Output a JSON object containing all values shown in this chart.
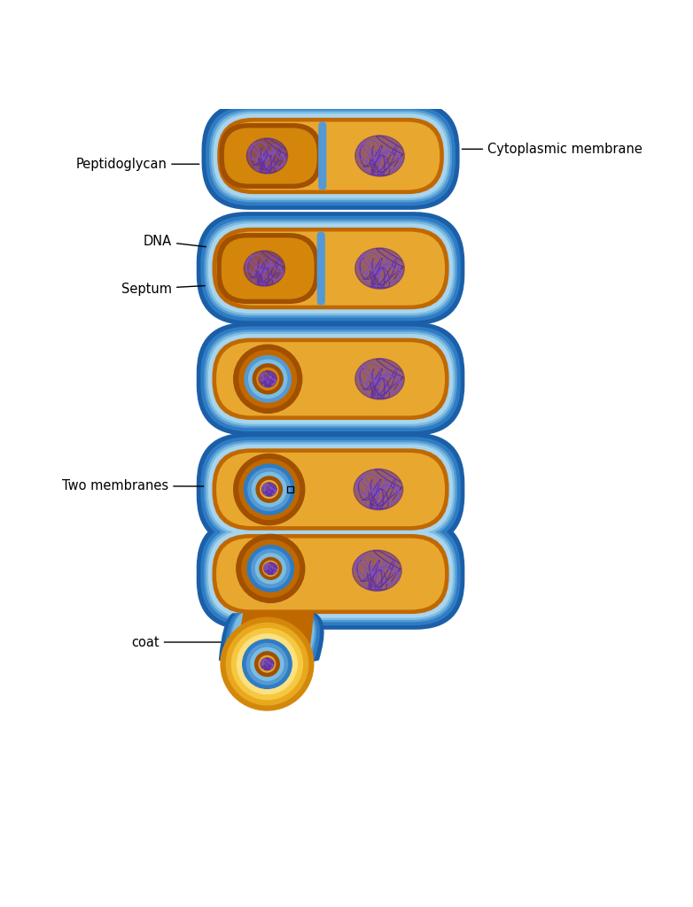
{
  "bg_color": "#ffffff",
  "c_blue1": "#1a5fa8",
  "c_blue2": "#2e7cc4",
  "c_blue3": "#5599d4",
  "c_blue4": "#7bbde0",
  "c_blue5": "#a8d4ee",
  "c_blue6": "#cce8f8",
  "c_brown1": "#7a3a00",
  "c_brown2": "#a05000",
  "c_brown3": "#c06800",
  "c_brown4": "#d4860a",
  "c_brown5": "#e8a830",
  "c_brown6": "#f0c870",
  "c_yellow1": "#d4880a",
  "c_yellow2": "#e8a820",
  "c_yellow3": "#f5c840",
  "c_yellow4": "#fde080",
  "c_purple1": "#4a1a8a",
  "c_purple2": "#6030a8",
  "c_purple3": "#8050c0",
  "labels": {
    "cytoplasmic_membrane": "Cytoplasmic membrane",
    "peptidoglycan": "Peptidoglycan",
    "dna": "DNA",
    "septum": "Septum",
    "two_membranes": "Two membranes",
    "coat": "coat"
  },
  "figsize": [
    7.82,
    10.24
  ],
  "dpi": 100
}
